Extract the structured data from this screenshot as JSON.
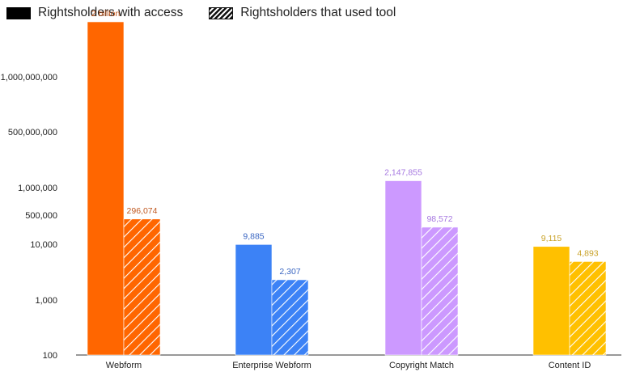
{
  "chart_data": {
    "type": "bar",
    "legend": [
      {
        "name": "Rightsholders with access",
        "pattern": "solid"
      },
      {
        "name": "Rightsholders that used tool",
        "pattern": "hatched"
      }
    ],
    "categories": [
      "Webform",
      "Enterprise Webform",
      "Copyright Match",
      "Content ID"
    ],
    "category_colors": [
      "#ff6600",
      "#3c82f6",
      "#cc99ff",
      "#ffc000"
    ],
    "label_colors": [
      "#c0581f",
      "#3a66c2",
      "#a678e0",
      "#c9a227"
    ],
    "series": [
      {
        "name": "Rightsholders with access",
        "values": [
          2000000000,
          9885,
          2147855,
          9115
        ],
        "labels": [
          "2 billion",
          "9,885",
          "2,147,855",
          "9,115"
        ]
      },
      {
        "name": "Rightsholders that used tool",
        "values": [
          296074,
          2307,
          98572,
          4893
        ],
        "labels": [
          "296,074",
          "2,307",
          "98,572",
          "4,893"
        ]
      }
    ],
    "ylabel": "",
    "xlabel": "",
    "scale": "log (piecewise, non-uniform)",
    "y_ticks": [
      {
        "label": "1,000,000,000",
        "value": 1000000000
      },
      {
        "label": "500,000,000",
        "value": 500000000
      },
      {
        "label": "1,000,000",
        "value": 1000000
      },
      {
        "label": "500,000",
        "value": 500000
      },
      {
        "label": "10,000",
        "value": 10000
      },
      {
        "label": "1,000",
        "value": 1000
      },
      {
        "label": "100",
        "value": 100
      }
    ],
    "grid": false,
    "legend_position": "top-left"
  }
}
